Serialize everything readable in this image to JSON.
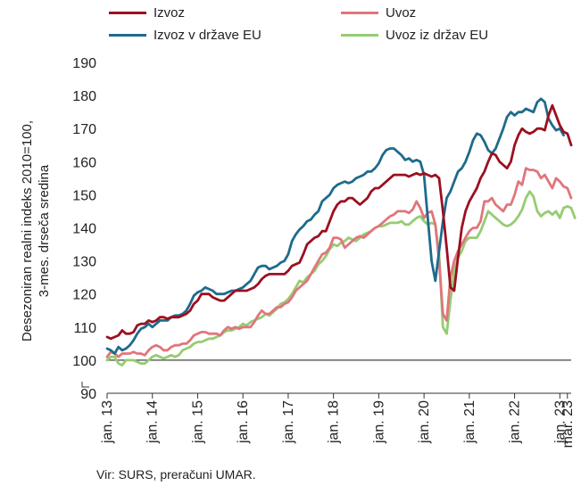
{
  "ylabel_line1": "Desezoniran realni indeks 2010=100,",
  "ylabel_line2": "3-mes. drseča sredina",
  "source": "Vir: SURS, preračuni UMAR.",
  "legend": [
    {
      "name": "Izvoz",
      "color": "#9b1020"
    },
    {
      "name": "Uvoz",
      "color": "#e0767c"
    },
    {
      "name": "Izvoz v države EU",
      "color": "#1e6b8c"
    },
    {
      "name": "Uvoz iz držav EU",
      "color": "#95cc72"
    }
  ],
  "chart_data": {
    "type": "line",
    "ylim": [
      90,
      190
    ],
    "yticks": [
      90,
      100,
      110,
      120,
      130,
      140,
      150,
      160,
      170,
      180,
      190
    ],
    "xticks": [
      "jan. 13",
      "jan. 14",
      "jan. 15",
      "jan. 16",
      "jan. 17",
      "jan. 18",
      "jan. 19",
      "jan. 20",
      "jan. 21",
      "jan. 22",
      "jan. 23",
      "mar. 23"
    ],
    "xtick_positions": [
      0,
      12,
      24,
      36,
      48,
      60,
      72,
      84,
      96,
      108,
      120,
      122
    ],
    "x_start": "2013-01",
    "reference_line": 100,
    "series": [
      {
        "name": "Izvoz",
        "color": "#9b1020",
        "values": [
          107,
          106.5,
          107,
          107.5,
          109,
          108,
          108,
          108.5,
          110.5,
          111,
          111,
          112,
          111.5,
          112,
          113,
          113,
          112.5,
          113,
          113,
          113,
          113.5,
          114,
          115,
          117,
          118,
          120,
          120,
          120,
          119,
          118.5,
          118,
          118,
          119,
          120,
          121,
          121,
          121,
          121,
          121.5,
          122,
          123,
          124.5,
          125.5,
          126,
          126,
          126,
          126,
          126,
          127,
          128.5,
          129,
          129.5,
          132,
          135,
          136,
          137,
          137.5,
          139,
          139,
          142,
          145,
          147,
          148,
          148,
          149,
          149,
          148,
          147,
          148,
          149,
          151,
          152,
          152,
          153,
          154,
          155,
          156,
          156,
          156,
          156,
          155.5,
          156,
          156.5,
          156,
          156.5,
          156,
          155.5,
          156,
          155,
          145,
          134,
          122,
          121,
          131,
          140,
          145,
          148,
          150,
          152,
          155,
          157,
          160,
          162.5,
          162,
          160,
          159,
          158,
          160,
          165,
          168,
          170,
          169,
          168.5,
          169,
          170,
          170,
          169.5,
          174,
          177,
          174,
          171,
          169,
          168.5,
          165
        ]
      },
      {
        "name": "Uvoz",
        "color": "#e0767c",
        "values": [
          101,
          102.5,
          102,
          101,
          102,
          102,
          102,
          102.5,
          102,
          102,
          101.5,
          103,
          104,
          104.5,
          104,
          103,
          103,
          104,
          104.5,
          104.5,
          105,
          105,
          106,
          107.5,
          108,
          108.5,
          108.5,
          108,
          108,
          108,
          107.5,
          109,
          110,
          109.5,
          110,
          109.5,
          110,
          110,
          110,
          111.5,
          113.5,
          115,
          114,
          114,
          115,
          116,
          116,
          117,
          117.5,
          119,
          121,
          122,
          123,
          124,
          126,
          128,
          130,
          132,
          132.5,
          134,
          137,
          137,
          136.5,
          134,
          135,
          136,
          137,
          137.5,
          137,
          138,
          139,
          140,
          140.5,
          141.5,
          142.5,
          143.5,
          144,
          145,
          145,
          145,
          144.5,
          145.5,
          148,
          146,
          143,
          144.5,
          145,
          141,
          130,
          114,
          112,
          125,
          130,
          133,
          135,
          137,
          139,
          140,
          140,
          142,
          148,
          148,
          149,
          147,
          146,
          145,
          147,
          147,
          150,
          154,
          153,
          158,
          157.5,
          157.5,
          157,
          155,
          156,
          154,
          152,
          155,
          154,
          152.5,
          152,
          149
        ]
      },
      {
        "name": "Izvoz v države EU",
        "color": "#1e6b8c",
        "values": [
          103.5,
          103,
          102,
          104,
          103,
          103.5,
          104.5,
          106,
          108,
          109.5,
          110,
          111,
          110,
          111,
          112,
          112,
          112,
          113,
          113.5,
          113.5,
          114,
          115,
          117,
          119.5,
          120.5,
          121,
          122,
          121.5,
          121,
          120,
          120,
          120,
          120.5,
          121,
          121,
          121.5,
          122,
          123,
          124,
          126,
          128,
          128.5,
          128.5,
          127.5,
          128,
          128.5,
          129.5,
          130,
          132,
          136,
          138,
          139.5,
          140.5,
          142,
          142.5,
          144,
          145,
          148,
          149,
          150,
          152,
          153,
          153.5,
          154,
          153.5,
          154,
          155,
          155.5,
          156,
          157,
          157,
          158,
          159.5,
          162,
          163.5,
          164,
          164,
          163,
          162,
          160.5,
          161,
          160,
          160.5,
          160,
          156,
          143,
          130,
          124,
          133,
          142,
          149,
          151,
          154,
          157,
          158,
          160,
          163,
          166.5,
          168.5,
          168,
          166,
          163.5,
          162.5,
          164,
          167,
          170,
          173.5,
          175,
          174,
          175,
          175,
          176,
          175.5,
          175,
          178,
          179,
          178,
          173,
          171,
          169.5,
          170,
          168
        ]
      },
      {
        "name": "Uvoz iz držav EU",
        "color": "#95cc72",
        "values": [
          100,
          101,
          101,
          99,
          98.5,
          100,
          100,
          100,
          99.5,
          99,
          99,
          100,
          101,
          101.5,
          101,
          100.5,
          101,
          101.5,
          101,
          101.5,
          103,
          103.5,
          104,
          105,
          105.5,
          105.5,
          106,
          106.5,
          106.5,
          107,
          107.5,
          108.5,
          109,
          109,
          109.5,
          110,
          111,
          110.5,
          111.5,
          112,
          112.5,
          113,
          114,
          113.5,
          114.5,
          115.5,
          117,
          117.5,
          118.5,
          120,
          122,
          124,
          123.5,
          125,
          126,
          127,
          129,
          130,
          131.5,
          133.5,
          135,
          134.5,
          135.5,
          136,
          137,
          136.5,
          136,
          137,
          138,
          138.5,
          139,
          140,
          140.5,
          140.5,
          141,
          141.5,
          141.5,
          141.5,
          142,
          141,
          141,
          142,
          143,
          143.5,
          142,
          141,
          141.5,
          141,
          132,
          110,
          108,
          118,
          127,
          131,
          133,
          136,
          137,
          137,
          137,
          139,
          142,
          145,
          144,
          143,
          142,
          141,
          140.5,
          141,
          142,
          143.5,
          145.5,
          149,
          151,
          149.5,
          145,
          143.5,
          144.5,
          145,
          144,
          145,
          143,
          146,
          146.5,
          146,
          143
        ]
      }
    ]
  }
}
